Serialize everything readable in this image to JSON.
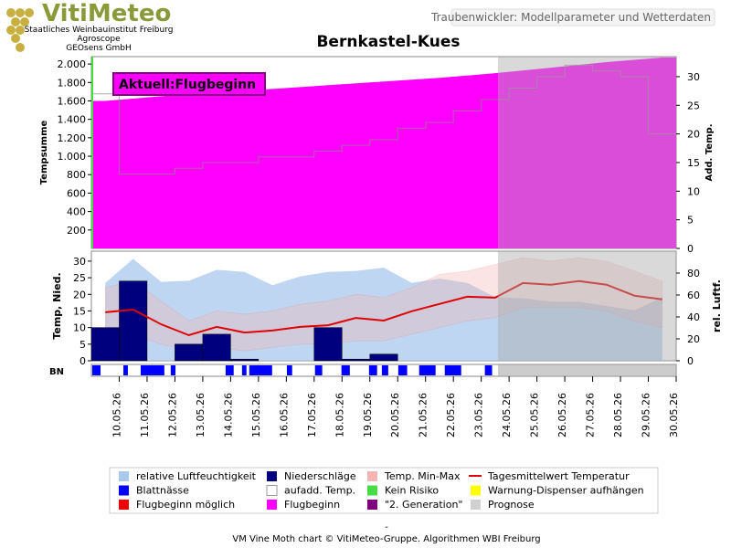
{
  "header": {
    "logo": "VitiMeteo",
    "lines": [
      "Staatliches Weinbauinstitut Freiburg",
      "Agroscope",
      "GEOsens GmbH"
    ],
    "subtitle": "Traubenwickler: Modellparameter und Wetterdaten",
    "title": "Bernkastel-Kues"
  },
  "chart_data": [
    {
      "type": "area",
      "ylabel": "Tempsumme",
      "y2label": "Add. Temp.",
      "annotation": "Aktuell:Flugbeginn",
      "ylim": [
        0,
        2080
      ],
      "yticks": [
        200,
        400,
        600,
        800,
        {
          "value": 1000,
          "label": "1.000"
        },
        {
          "value": 1200,
          "label": "1.200"
        },
        {
          "value": 1400,
          "label": "1.400"
        },
        {
          "value": 1600,
          "label": "1.600"
        },
        {
          "value": 1800,
          "label": "1.800"
        },
        {
          "value": 2000,
          "label": "2.000"
        }
      ],
      "y2lim": [
        0,
        33.5
      ],
      "y2ticks": [
        0,
        5,
        10,
        15,
        20,
        25,
        30
      ],
      "forecast_start": 14.6,
      "series": [
        {
          "name": "Flugbeginn",
          "color": "#ff00ff",
          "values": [
            1600,
            1625,
            1650,
            1670,
            1690,
            1710,
            1730,
            1750,
            1770,
            1790,
            1810,
            1830,
            1850,
            1875,
            1900,
            1930,
            1960,
            1990,
            2020,
            2045,
            2070
          ]
        },
        {
          "name": "aufadd. Temp.",
          "color": "#8a8a8a",
          "axis": "y2",
          "values": [
            27,
            13,
            13,
            14,
            15,
            15,
            16,
            16,
            17,
            18,
            19,
            21,
            22,
            24,
            26,
            28,
            30,
            32,
            31,
            30,
            20
          ]
        }
      ]
    },
    {
      "type": "combo",
      "ylabel": "Temp, Nied.",
      "y2label": "rel. Luftf.",
      "bnlabel": "BN",
      "categories": [
        "10.05.26",
        "11.05.26",
        "12.05.26",
        "13.05.26",
        "14.05.26",
        "15.05.26",
        "16.05.26",
        "17.05.26",
        "18.05.26",
        "19.05.26",
        "20.05.26",
        "21.05.26",
        "22.05.26",
        "23.05.26",
        "24.05.26",
        "25.05.26",
        "26.05.26",
        "27.05.26",
        "28.05.26",
        "29.05.26",
        "30.05.26"
      ],
      "ylim": [
        0,
        33
      ],
      "yticks": [
        0,
        5,
        10,
        15,
        20,
        25,
        30
      ],
      "y2lim": [
        0,
        100
      ],
      "y2ticks": [
        0,
        20,
        40,
        60,
        80
      ],
      "series": [
        {
          "name": "relative Luftfeuchtigkeit",
          "color": "#a8c8ec",
          "axis": "y2",
          "values": [
            71,
            93,
            72,
            73,
            83,
            81,
            69,
            77,
            81,
            82,
            85,
            71,
            75,
            71,
            58,
            57,
            54,
            54,
            50,
            46,
            58
          ]
        },
        {
          "name": "Niederschläge",
          "color": "#00007f",
          "values": [
            10,
            24,
            0,
            5,
            8,
            0.5,
            0,
            0,
            10,
            0.5,
            2,
            0,
            0,
            0,
            0,
            0,
            0,
            0,
            0,
            0,
            0
          ]
        },
        {
          "name": "Tagesmittelwert Temperatur",
          "color": "#e00000",
          "values": [
            14.6,
            15.4,
            11,
            7.7,
            10.2,
            8.5,
            9.1,
            10.2,
            10.7,
            12.9,
            12.1,
            14.9,
            17.1,
            19.3,
            19,
            23.4,
            22.9,
            24,
            22.9,
            19.6,
            18.5
          ]
        },
        {
          "name": "Temp. Min-Max",
          "color": "#f4b4b4",
          "low": [
            6,
            8,
            5,
            3,
            4,
            3,
            4,
            5,
            5,
            6,
            6,
            8,
            10,
            12,
            13,
            16,
            16,
            16,
            15,
            12,
            10
          ],
          "high": [
            22,
            24,
            18,
            12,
            15,
            14,
            15,
            17,
            18,
            20,
            19,
            22,
            26,
            27,
            29,
            31,
            30,
            31,
            30,
            27,
            24
          ]
        },
        {
          "name": "Blattnässe",
          "color": "#0000ff",
          "intervals": [
            [
              0.03,
              0.33
            ],
            [
              1.15,
              1.31
            ],
            [
              1.77,
              2.62
            ],
            [
              2.85,
              3.02
            ],
            [
              4.82,
              5.11
            ],
            [
              5.41,
              5.57
            ],
            [
              5.67,
              6.49
            ],
            [
              7.02,
              7.21
            ],
            [
              8.03,
              8.29
            ],
            [
              8.98,
              9.28
            ],
            [
              9.97,
              10.26
            ],
            [
              10.43,
              10.66
            ],
            [
              11.02,
              11.34
            ],
            [
              11.77,
              12.36
            ],
            [
              12.69,
              13.28
            ],
            [
              14.13,
              14.39
            ]
          ]
        }
      ]
    }
  ],
  "legend_extra": [
    {
      "name": "Kein Risiko",
      "color": "#44dd44"
    },
    {
      "name": "Warnung-Dispenser aufhängen",
      "color": "#ffff00"
    },
    {
      "name": "Flugbeginn möglich",
      "color": "#ee0000"
    },
    {
      "name": "\"2. Generation\"",
      "color": "#800080"
    },
    {
      "name": "Prognose",
      "color": "#d0d0d0"
    }
  ],
  "footer": {
    "dash": "-",
    "credit": "VM Vine Moth chart © VitiMeteo-Gruppe. Algorithmen WBI Freiburg"
  }
}
